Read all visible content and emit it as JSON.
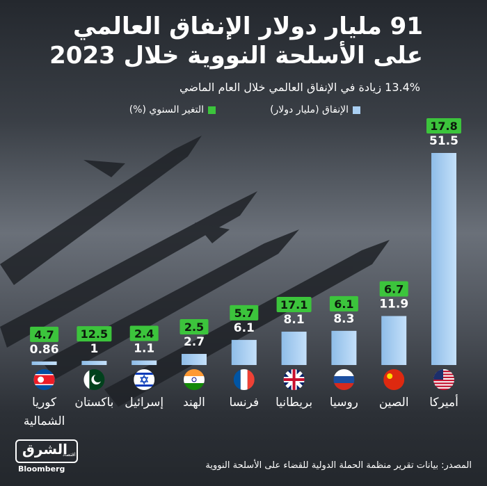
{
  "chart_data": {
    "type": "bar",
    "title": [
      "91 مليار دولار الإنفاق العالمي",
      "على الأسلحة النووية خلال 2023"
    ],
    "subtitle": "13.4% زيادة في الإنفاق العالمي خلال العام الماضي",
    "categories": [
      "أميركا",
      "الصين",
      "روسيا",
      "بريطانيا",
      "فرنسا",
      "الهند",
      "إسرائيل",
      "باكستان",
      "كوريا الشمالية"
    ],
    "series": [
      {
        "name": "الإنفاق (مليار دولار)",
        "color": "#a9cff2",
        "values": [
          51.5,
          11.9,
          8.3,
          8.1,
          6.1,
          2.7,
          1.1,
          1,
          0.86
        ]
      },
      {
        "name": "التغير السنوي (%)",
        "color": "#3cc43c",
        "values": [
          17.8,
          6.7,
          6.1,
          17.1,
          5.7,
          2.5,
          2.4,
          12.5,
          4.7
        ]
      }
    ],
    "source": "المصدر: بيانات تقرير منظمة الحملة الدولية للقضاء على الأسلحة النووية",
    "logo": {
      "name": "الشرق",
      "tag": "اقتصاد",
      "brand": "Bloomberg"
    }
  }
}
